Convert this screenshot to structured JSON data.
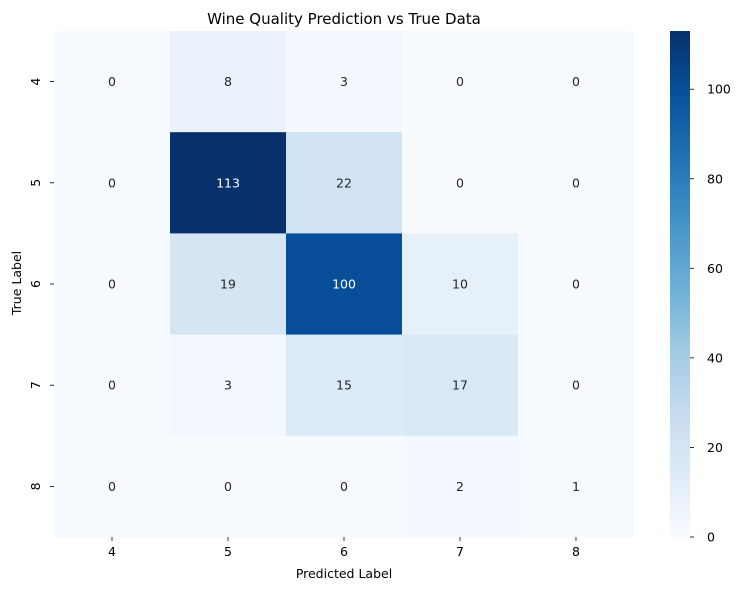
{
  "chart_data": {
    "type": "heatmap",
    "title": "Wine Quality Prediction vs True Data",
    "xlabel": "Predicted Label",
    "ylabel": "True Label",
    "x_categories": [
      "4",
      "5",
      "6",
      "7",
      "8"
    ],
    "y_categories": [
      "4",
      "5",
      "6",
      "7",
      "8"
    ],
    "values": [
      [
        0,
        8,
        3,
        0,
        0
      ],
      [
        0,
        113,
        22,
        0,
        0
      ],
      [
        0,
        19,
        100,
        10,
        0
      ],
      [
        0,
        3,
        15,
        17,
        0
      ],
      [
        0,
        0,
        0,
        2,
        1
      ]
    ],
    "colorscale": "Blues",
    "vmin": 0,
    "vmax": 113,
    "colorbar_ticks": [
      "0",
      "20",
      "40",
      "60",
      "80",
      "100"
    ],
    "annotations": true
  }
}
